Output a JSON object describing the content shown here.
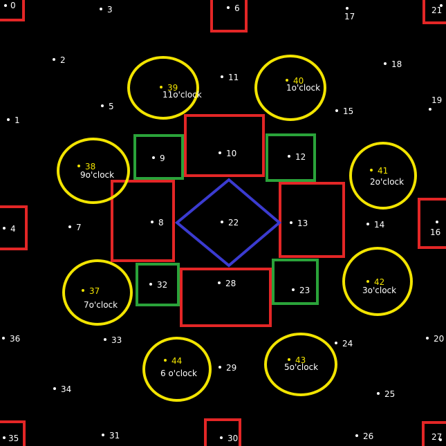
{
  "colors": {
    "background": "#000000",
    "red": "#e32626",
    "green": "#2aa33a",
    "blue": "#3b3bd0",
    "yellow": "#f2e400",
    "white": "#ffffff"
  },
  "points": [
    {
      "id": "0",
      "label": "0"
    },
    {
      "id": "1",
      "label": "1"
    },
    {
      "id": "2",
      "label": "2"
    },
    {
      "id": "3",
      "label": "3"
    },
    {
      "id": "4",
      "label": "4"
    },
    {
      "id": "5",
      "label": "5"
    },
    {
      "id": "6",
      "label": "6"
    },
    {
      "id": "7",
      "label": "7"
    },
    {
      "id": "8",
      "label": "8"
    },
    {
      "id": "9",
      "label": "9"
    },
    {
      "id": "10",
      "label": "10"
    },
    {
      "id": "11",
      "label": "11"
    },
    {
      "id": "12",
      "label": "12"
    },
    {
      "id": "13",
      "label": "13"
    },
    {
      "id": "14",
      "label": "14"
    },
    {
      "id": "15",
      "label": "15"
    },
    {
      "id": "16",
      "label": "16"
    },
    {
      "id": "17",
      "label": "17"
    },
    {
      "id": "18",
      "label": "18"
    },
    {
      "id": "19",
      "label": "19"
    },
    {
      "id": "20",
      "label": "20"
    },
    {
      "id": "21",
      "label": "21"
    },
    {
      "id": "22",
      "label": "22"
    },
    {
      "id": "23",
      "label": "23"
    },
    {
      "id": "24",
      "label": "24"
    },
    {
      "id": "25",
      "label": "25"
    },
    {
      "id": "26",
      "label": "26"
    },
    {
      "id": "27",
      "label": "27"
    },
    {
      "id": "28",
      "label": "28"
    },
    {
      "id": "29",
      "label": "29"
    },
    {
      "id": "30",
      "label": "30"
    },
    {
      "id": "31",
      "label": "31"
    },
    {
      "id": "32",
      "label": "32"
    },
    {
      "id": "33",
      "label": "33"
    },
    {
      "id": "34",
      "label": "34"
    },
    {
      "id": "35",
      "label": "35"
    },
    {
      "id": "36",
      "label": "36"
    },
    {
      "id": "37",
      "label": "37",
      "sub": "7o'clock"
    },
    {
      "id": "38",
      "label": "38",
      "sub": "9o'clock"
    },
    {
      "id": "39",
      "label": "39",
      "sub": "11o'clock"
    },
    {
      "id": "40",
      "label": "40",
      "sub": "1o'clock"
    },
    {
      "id": "41",
      "label": "41",
      "sub": "2o'clock"
    },
    {
      "id": "42",
      "label": "42",
      "sub": "3o'clock"
    },
    {
      "id": "43",
      "label": "43",
      "sub": "5o'clock"
    },
    {
      "id": "44",
      "label": "44",
      "sub": "6 o'clock"
    }
  ]
}
